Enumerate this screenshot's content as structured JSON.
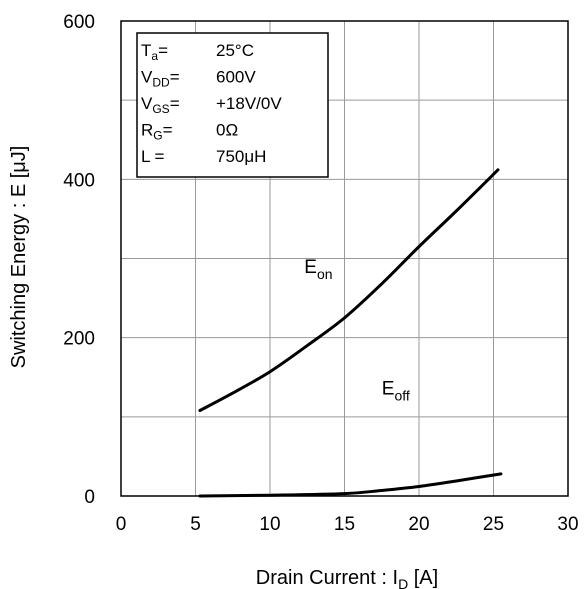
{
  "chart_data": {
    "type": "line",
    "title": "",
    "xlabel": {
      "main": "Drain Current : I",
      "sub": "D",
      "unit": " [A]"
    },
    "ylabel": "Switching Energy : E [μJ]",
    "xlim": [
      0,
      30
    ],
    "ylim": [
      0,
      600
    ],
    "x_ticks": [
      0,
      5,
      10,
      15,
      20,
      25,
      30
    ],
    "y_ticks": [
      0,
      200,
      400,
      600
    ],
    "x_tick_labels": [
      "0",
      "5",
      "10",
      "15",
      "20",
      "25",
      "30"
    ],
    "y_tick_labels": [
      "0",
      "200",
      "400",
      "600"
    ],
    "grid": true,
    "conditions": [
      {
        "symbol": "T",
        "sub": "a",
        "eq": "=",
        "value": "25°C"
      },
      {
        "symbol": "V",
        "sub": "DD",
        "eq": "=",
        "value": "600V"
      },
      {
        "symbol": "V",
        "sub": "GS",
        "eq": "=",
        "value": "+18V/0V"
      },
      {
        "symbol": "R",
        "sub": "G",
        "eq": "=",
        "value": "0Ω"
      },
      {
        "symbol": "L",
        "sub": "",
        "eq": "=",
        "value": "750μH"
      }
    ],
    "series": [
      {
        "name": "E",
        "sub": "on",
        "label_at": [
          12.3,
          282
        ],
        "points": [
          [
            5.3,
            108
          ],
          [
            7.5,
            130
          ],
          [
            10,
            157
          ],
          [
            12.5,
            190
          ],
          [
            15,
            225
          ],
          [
            17.5,
            268
          ],
          [
            20,
            315
          ],
          [
            22.5,
            360
          ],
          [
            25.3,
            412
          ]
        ]
      },
      {
        "name": "E",
        "sub": "off",
        "label_at": [
          17.5,
          128
        ],
        "points": [
          [
            5.3,
            0
          ],
          [
            10,
            1
          ],
          [
            15,
            3
          ],
          [
            17.5,
            7
          ],
          [
            20,
            12
          ],
          [
            22.5,
            19
          ],
          [
            25.5,
            28
          ]
        ]
      }
    ],
    "line_color": "#000000",
    "grid_color": "#9a9a9a"
  }
}
